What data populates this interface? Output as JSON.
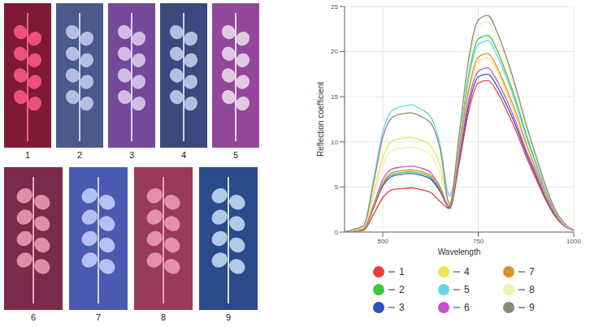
{
  "images": {
    "labels": [
      "1",
      "2",
      "3",
      "4",
      "5",
      "6",
      "7",
      "8",
      "9"
    ]
  },
  "chart_data": {
    "type": "line",
    "x_label": "Wavelength",
    "y_label": "Reflection coefficient",
    "x": [
      400,
      425,
      450,
      475,
      500,
      525,
      550,
      575,
      600,
      625,
      650,
      675,
      700,
      725,
      750,
      775,
      800,
      825,
      850,
      875,
      900,
      925,
      950,
      975,
      1000
    ],
    "xlim": [
      400,
      1000
    ],
    "xticks": [
      500,
      750,
      1000
    ],
    "ylim": [
      0,
      25
    ],
    "yticks": [
      0,
      5,
      10,
      15,
      20,
      25
    ],
    "grid": true,
    "legend": "bottom",
    "series": [
      {
        "name": "1",
        "color": "#e8413c",
        "values": [
          0,
          0.1,
          0.2,
          1.9,
          3.8,
          4.7,
          4.8,
          4.9,
          4.7,
          4.4,
          3.4,
          2.6,
          7.6,
          13.4,
          16.5,
          16.8,
          15.5,
          13.4,
          11.1,
          8.4,
          6.0,
          3.7,
          1.8,
          0.7,
          0.2
        ]
      },
      {
        "name": "2",
        "color": "#3cc83c",
        "values": [
          0,
          0.1,
          0.3,
          2.6,
          5.3,
          6.4,
          6.6,
          6.7,
          6.5,
          6.1,
          4.6,
          2.9,
          9.8,
          17.4,
          21.4,
          21.8,
          20.1,
          17.4,
          14.4,
          10.9,
          7.8,
          4.8,
          2.4,
          0.9,
          0.2
        ]
      },
      {
        "name": "3",
        "color": "#2f4fbf",
        "values": [
          0,
          0.1,
          0.3,
          2.6,
          5.1,
          6.2,
          6.4,
          6.5,
          6.3,
          5.9,
          4.5,
          2.7,
          7.9,
          14.0,
          17.2,
          17.5,
          16.1,
          14.0,
          11.6,
          8.8,
          6.3,
          3.9,
          1.9,
          0.7,
          0.2
        ]
      },
      {
        "name": "4",
        "color": "#efe35a",
        "values": [
          0,
          0.2,
          0.5,
          4.2,
          8.3,
          10.1,
          10.4,
          10.5,
          10.2,
          9.6,
          7.3,
          3.3,
          8.7,
          15.4,
          18.9,
          19.3,
          17.8,
          15.4,
          12.7,
          9.7,
          6.9,
          4.2,
          2.1,
          0.8,
          0.2
        ]
      },
      {
        "name": "5",
        "color": "#63d5e8",
        "values": [
          0,
          0.3,
          0.7,
          5.6,
          11.1,
          13.5,
          13.9,
          14.1,
          13.6,
          12.8,
          9.7,
          4.0,
          9.5,
          17.0,
          20.8,
          21.2,
          19.5,
          17.0,
          14.0,
          10.6,
          7.6,
          4.7,
          2.3,
          0.8,
          0.2
        ]
      },
      {
        "name": "6",
        "color": "#c84fd0",
        "values": [
          0,
          0.1,
          0.4,
          2.9,
          5.8,
          7.0,
          7.2,
          7.3,
          7.1,
          6.6,
          5.0,
          2.8,
          8.2,
          14.6,
          17.8,
          18.2,
          16.7,
          14.6,
          12.0,
          9.1,
          6.6,
          4.0,
          2.0,
          0.7,
          0.2
        ]
      },
      {
        "name": "7",
        "color": "#e0902a",
        "values": [
          0,
          0.1,
          0.3,
          2.7,
          5.4,
          6.6,
          6.8,
          6.9,
          6.7,
          6.3,
          4.8,
          2.8,
          8.9,
          15.8,
          19.4,
          19.8,
          18.2,
          15.8,
          13.1,
          9.9,
          7.1,
          4.4,
          2.2,
          0.8,
          0.2
        ]
      },
      {
        "name": "8",
        "color": "#f2eeb0",
        "values": [
          0,
          0.2,
          0.5,
          3.7,
          7.4,
          9.0,
          9.3,
          9.4,
          9.1,
          8.6,
          6.5,
          3.2,
          10.5,
          18.6,
          22.8,
          23.3,
          21.4,
          18.6,
          15.4,
          11.7,
          8.4,
          5.1,
          2.6,
          0.9,
          0.2
        ]
      },
      {
        "name": "9",
        "color": "#8a8a7a",
        "values": [
          0,
          0.3,
          0.7,
          5.2,
          10.5,
          12.7,
          13.1,
          13.2,
          12.8,
          12.1,
          9.2,
          3.1,
          10.8,
          19.2,
          23.5,
          24.0,
          22.1,
          19.2,
          15.8,
          12.0,
          8.6,
          5.3,
          2.6,
          1.0,
          0.2
        ]
      }
    ]
  }
}
